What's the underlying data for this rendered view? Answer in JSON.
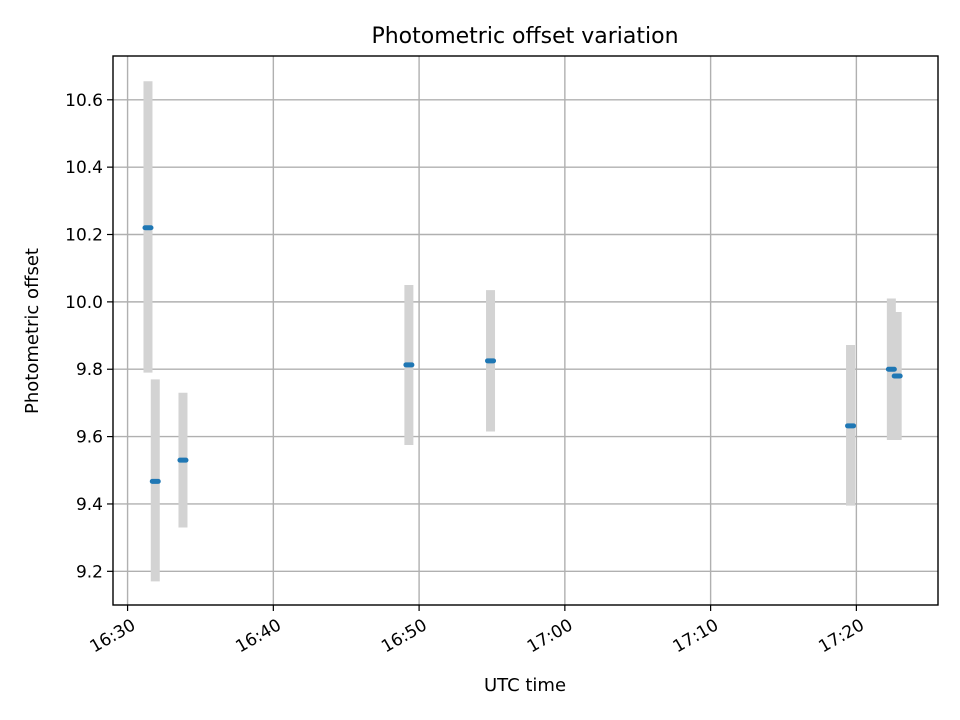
{
  "chart_data": {
    "type": "scatter",
    "title": "Photometric offset variation",
    "xlabel": "UTC time",
    "ylabel": "Photometric offset",
    "x_ticks": [
      "16:30",
      "16:40",
      "16:50",
      "17:00",
      "17:10",
      "17:20"
    ],
    "y_ticks": [
      "9.2",
      "9.4",
      "9.6",
      "9.8",
      "10.0",
      "10.2",
      "10.4",
      "10.6"
    ],
    "xlim": [
      "16:29",
      "17:25.6"
    ],
    "ylim": [
      9.1,
      10.73
    ],
    "grid": true,
    "points": [
      {
        "x": "16:31.4",
        "y": 10.22,
        "yerr_low": 9.79,
        "yerr_high": 10.655
      },
      {
        "x": "16:31.9",
        "y": 9.467,
        "yerr_low": 9.17,
        "yerr_high": 9.77
      },
      {
        "x": "16:33.8",
        "y": 9.53,
        "yerr_low": 9.33,
        "yerr_high": 9.73
      },
      {
        "x": "16:49.3",
        "y": 9.813,
        "yerr_low": 9.575,
        "yerr_high": 10.05
      },
      {
        "x": "16:54.9",
        "y": 9.825,
        "yerr_low": 9.615,
        "yerr_high": 10.035
      },
      {
        "x": "17:19.6",
        "y": 9.632,
        "yerr_low": 9.395,
        "yerr_high": 9.872
      },
      {
        "x": "17:22.4",
        "y": 9.8,
        "yerr_low": 9.59,
        "yerr_high": 10.01
      },
      {
        "x": "17:22.8",
        "y": 9.78,
        "yerr_low": 9.59,
        "yerr_high": 9.97
      }
    ],
    "colors": {
      "points": "#1f77b4",
      "error_bars": "#d3d3d3",
      "grid": "#b0b0b0"
    }
  }
}
